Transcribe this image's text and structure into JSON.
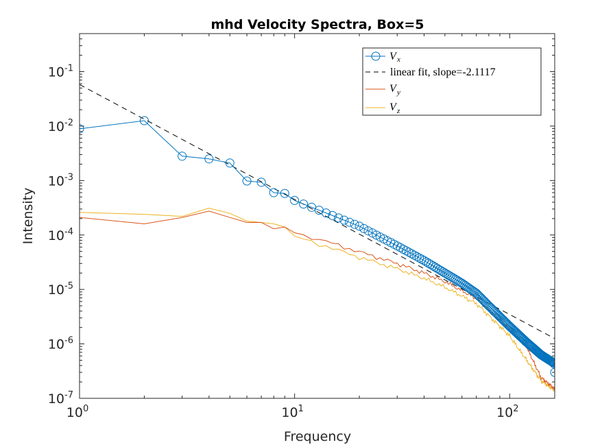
{
  "chart_data": {
    "type": "line",
    "title": "mhd Velocity Spectra, Box=5",
    "xlabel": "Frequency",
    "ylabel": "Intensity",
    "xscale": "log",
    "yscale": "log",
    "xlim": [
      1,
      162
    ],
    "ylim": [
      1e-07,
      0.5
    ],
    "grid": false,
    "legend_position": "top-right",
    "x_ticks": [
      {
        "value": 1,
        "base": "10",
        "exp": "0"
      },
      {
        "value": 10,
        "base": "10",
        "exp": "1"
      },
      {
        "value": 100,
        "base": "10",
        "exp": "2"
      }
    ],
    "y_ticks": [
      {
        "value": 1e-07,
        "base": "10",
        "exp": "-7"
      },
      {
        "value": 1e-06,
        "base": "10",
        "exp": "-6"
      },
      {
        "value": 1e-05,
        "base": "10",
        "exp": "-5"
      },
      {
        "value": 0.0001,
        "base": "10",
        "exp": "-4"
      },
      {
        "value": 0.001,
        "base": "10",
        "exp": "-3"
      },
      {
        "value": 0.01,
        "base": "10",
        "exp": "-2"
      },
      {
        "value": 0.1,
        "base": "10",
        "exp": "-1"
      }
    ],
    "series": [
      {
        "name": "V_x",
        "legend_main": "V",
        "legend_sub": "x",
        "color": "#0072BD",
        "marker": "circle",
        "points": [
          [
            1,
            0.0089
          ],
          [
            2,
            0.0126
          ],
          [
            3,
            0.0028
          ],
          [
            4,
            0.0025
          ],
          [
            5,
            0.0021
          ],
          [
            6,
            0.00098
          ],
          [
            7,
            0.00093
          ],
          [
            8,
            0.0006
          ],
          [
            9,
            0.00058
          ],
          [
            10,
            0.00043
          ],
          [
            20,
            0.000145
          ],
          [
            30,
            6.3e-05
          ],
          [
            40,
            3.4e-05
          ],
          [
            50,
            2e-05
          ],
          [
            60,
            1.3e-05
          ],
          [
            70,
            8.5e-06
          ],
          [
            80,
            5e-06
          ],
          [
            100,
            2.1e-06
          ],
          [
            120,
            1.07e-06
          ],
          [
            140,
            6.3e-07
          ],
          [
            160,
            4.5e-07
          ],
          [
            161,
            4.3e-07
          ],
          [
            162,
            3e-07
          ]
        ]
      },
      {
        "name": "linear fit, slope=-2.1117",
        "legend_main": "linear fit, slope=-2.1117",
        "color": "#000000",
        "dash": true,
        "slope": -2.1117,
        "intercept_at_1": 0.058
      },
      {
        "name": "V_y",
        "legend_main": "V",
        "legend_sub": "y",
        "color": "#D95319",
        "points": [
          [
            1,
            0.00021
          ],
          [
            2,
            0.00016
          ],
          [
            3,
            0.00021
          ],
          [
            4,
            0.000275
          ],
          [
            5,
            0.00021
          ],
          [
            6,
            0.00017
          ],
          [
            7,
            0.00017
          ],
          [
            8,
            0.00013
          ],
          [
            9,
            0.00014
          ],
          [
            10,
            0.00011
          ],
          [
            15,
            7e-05
          ],
          [
            20,
            4.9e-05
          ],
          [
            30,
            3e-05
          ],
          [
            40,
            2e-05
          ],
          [
            50,
            1.4e-05
          ],
          [
            70,
            6.8e-06
          ],
          [
            100,
            1.9e-06
          ],
          [
            120,
            8.7e-07
          ],
          [
            140,
            2.4e-07
          ],
          [
            162,
            1.5e-07
          ]
        ]
      },
      {
        "name": "V_z",
        "legend_main": "V",
        "legend_sub": "z",
        "color": "#EDB120",
        "points": [
          [
            1,
            0.00026
          ],
          [
            2,
            0.00024
          ],
          [
            3,
            0.00022
          ],
          [
            4,
            0.00031
          ],
          [
            5,
            0.00025
          ],
          [
            6,
            0.00018
          ],
          [
            7,
            0.00017
          ],
          [
            8,
            0.00016
          ],
          [
            9,
            0.00014
          ],
          [
            10,
            9.6e-05
          ],
          [
            20,
            3.9e-05
          ],
          [
            30,
            2.4e-05
          ],
          [
            40,
            1.6e-05
          ],
          [
            50,
            1.1e-05
          ],
          [
            70,
            5.5e-06
          ],
          [
            100,
            1.4e-06
          ],
          [
            120,
            5e-07
          ],
          [
            140,
            2.1e-07
          ],
          [
            162,
            1.4e-07
          ]
        ]
      }
    ]
  }
}
